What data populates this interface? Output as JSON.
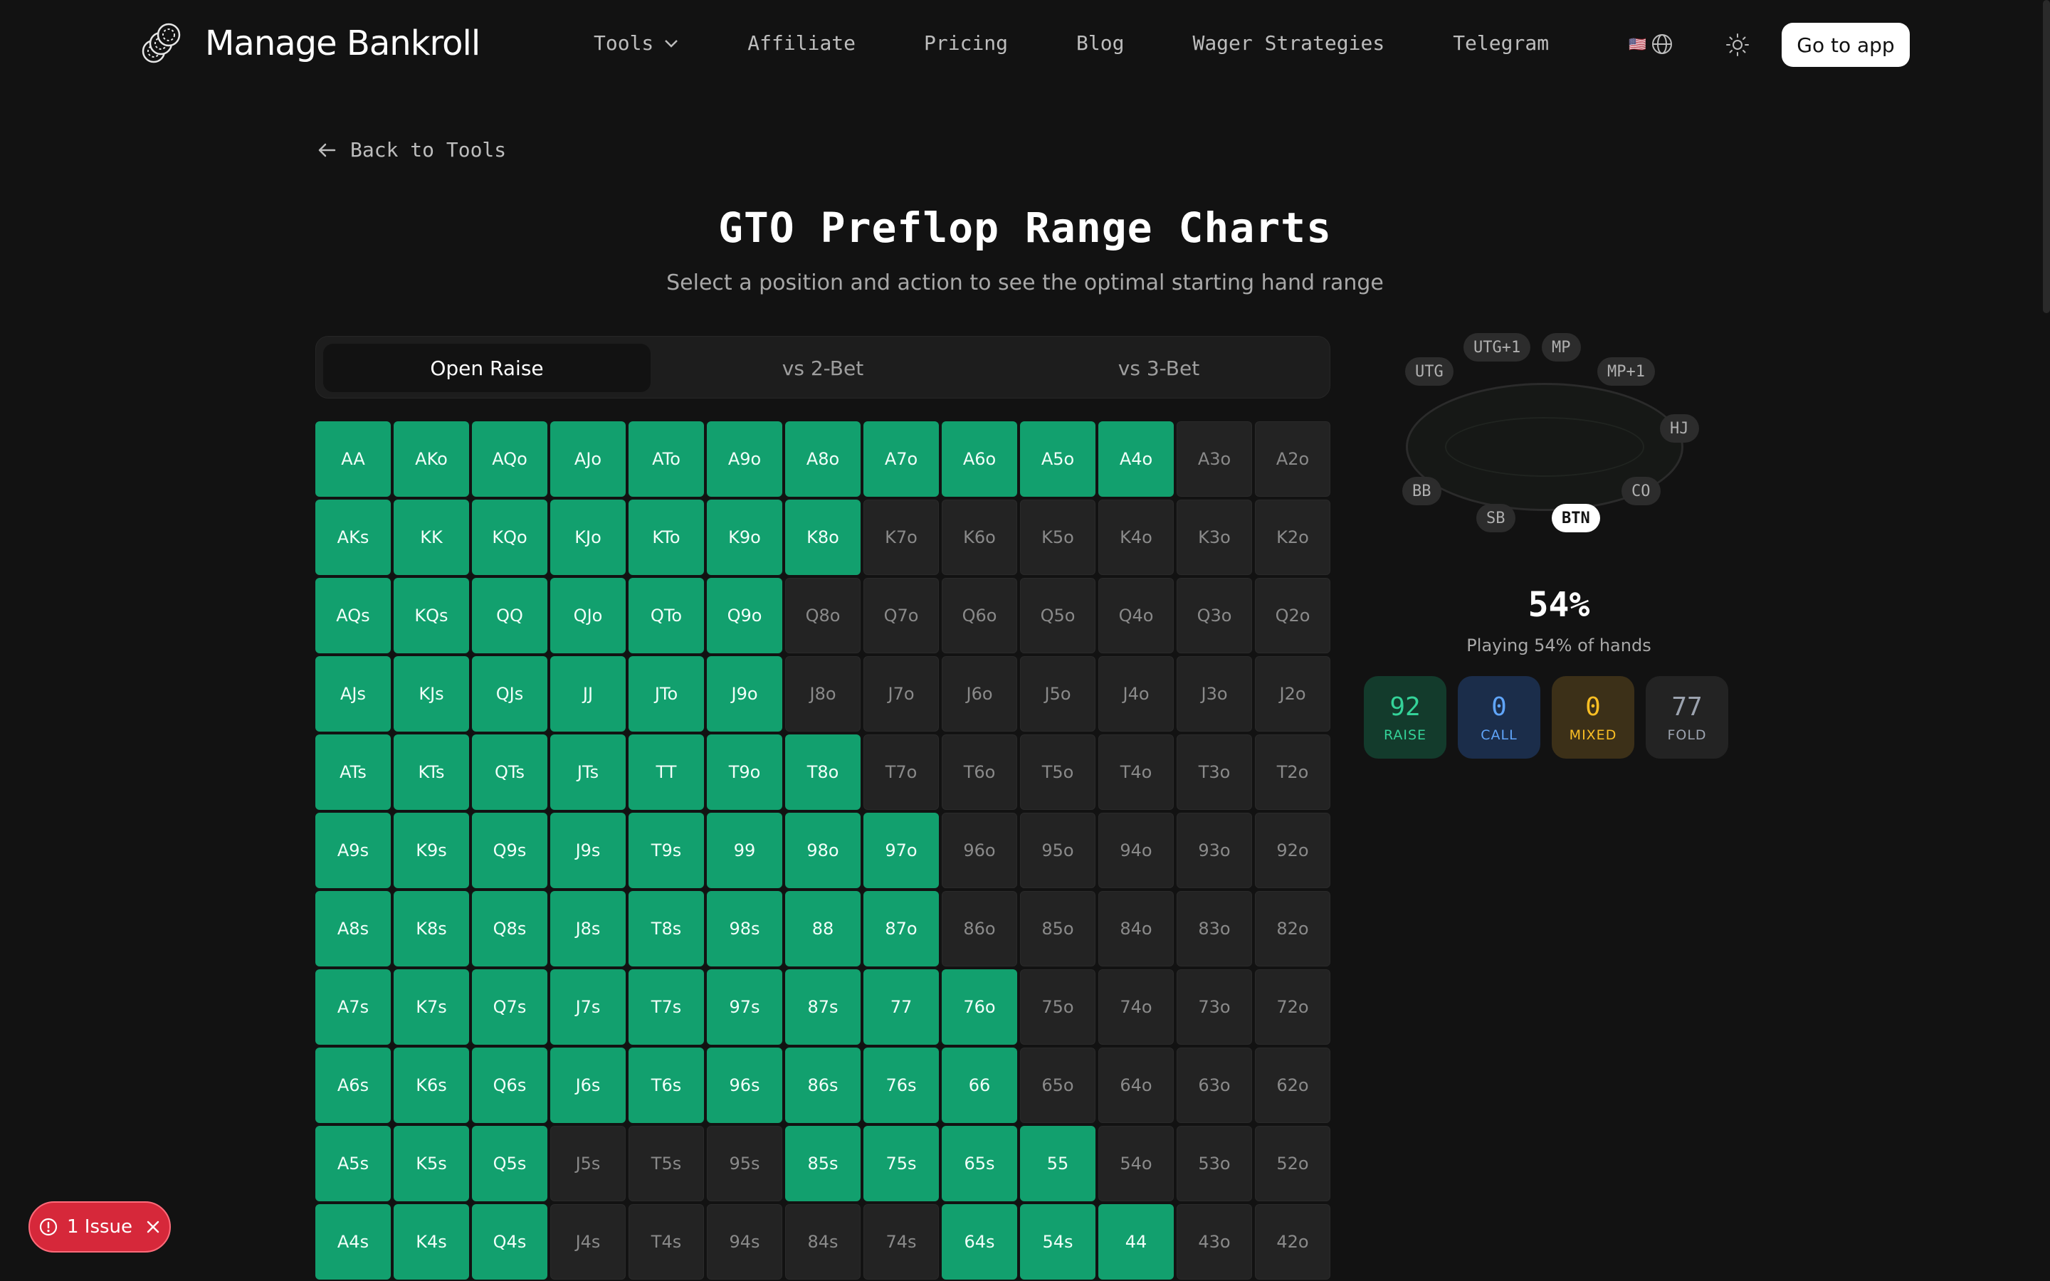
{
  "header": {
    "brand": "Manage Bankroll",
    "nav": [
      "Tools",
      "Affiliate",
      "Pricing",
      "Blog",
      "Wager Strategies",
      "Telegram"
    ],
    "flag": "🇺🇸",
    "cta": "Go to app"
  },
  "back_label": "Back to Tools",
  "title": "GTO Preflop Range Charts",
  "subtitle": "Select a position and action to see the optimal starting hand range",
  "tabs": [
    "Open Raise",
    "vs 2-Bet",
    "vs 3-Bet"
  ],
  "active_tab": "Open Raise",
  "grid": {
    "rows": [
      [
        "AA",
        "AKo",
        "AQo",
        "AJo",
        "ATo",
        "A9o",
        "A8o",
        "A7o",
        "A6o",
        "A5o",
        "A4o",
        "A3o",
        "A2o"
      ],
      [
        "AKs",
        "KK",
        "KQo",
        "KJo",
        "KTo",
        "K9o",
        "K8o",
        "K7o",
        "K6o",
        "K5o",
        "K4o",
        "K3o",
        "K2o"
      ],
      [
        "AQs",
        "KQs",
        "QQ",
        "QJo",
        "QTo",
        "Q9o",
        "Q8o",
        "Q7o",
        "Q6o",
        "Q5o",
        "Q4o",
        "Q3o",
        "Q2o"
      ],
      [
        "AJs",
        "KJs",
        "QJs",
        "JJ",
        "JTo",
        "J9o",
        "J8o",
        "J7o",
        "J6o",
        "J5o",
        "J4o",
        "J3o",
        "J2o"
      ],
      [
        "ATs",
        "KTs",
        "QTs",
        "JTs",
        "TT",
        "T9o",
        "T8o",
        "T7o",
        "T6o",
        "T5o",
        "T4o",
        "T3o",
        "T2o"
      ],
      [
        "A9s",
        "K9s",
        "Q9s",
        "J9s",
        "T9s",
        "99",
        "98o",
        "97o",
        "96o",
        "95o",
        "94o",
        "93o",
        "92o"
      ],
      [
        "A8s",
        "K8s",
        "Q8s",
        "J8s",
        "T8s",
        "98s",
        "88",
        "87o",
        "86o",
        "85o",
        "84o",
        "83o",
        "82o"
      ],
      [
        "A7s",
        "K7s",
        "Q7s",
        "J7s",
        "T7s",
        "97s",
        "87s",
        "77",
        "76o",
        "75o",
        "74o",
        "73o",
        "72o"
      ],
      [
        "A6s",
        "K6s",
        "Q6s",
        "J6s",
        "T6s",
        "96s",
        "86s",
        "76s",
        "66",
        "65o",
        "64o",
        "63o",
        "62o"
      ],
      [
        "A5s",
        "K5s",
        "Q5s",
        "J5s",
        "T5s",
        "95s",
        "85s",
        "75s",
        "65s",
        "55",
        "54o",
        "53o",
        "52o"
      ],
      [
        "A4s",
        "K4s",
        "Q4s",
        "J4s",
        "T4s",
        "94s",
        "84s",
        "74s",
        "64s",
        "54s",
        "44",
        "43o",
        "42o"
      ]
    ],
    "actions": [
      "RRRRRRRRRRRFF",
      "RRRRRRRFFFFFF",
      "RRRRRRFFFFFFF",
      "RRRRRRFFFFFFF",
      "RRRRRRRFFFFFF",
      "RRRRRRRRFFFFF",
      "RRRRRRRRFFFFF",
      "RRRRRRRRRFFFF",
      "RRRRRRRRRFFFF",
      "RRRFFFRRRRFFF",
      "RRRFFFFFRRRFF"
    ]
  },
  "seats": [
    "UTG",
    "UTG+1",
    "MP",
    "MP+1",
    "HJ",
    "CO",
    "BTN",
    "SB",
    "BB"
  ],
  "active_seat": "BTN",
  "percent": "54%",
  "percent_label": "Playing 54% of hands",
  "stats": [
    {
      "value": "92",
      "label": "RAISE",
      "color": "#34d399",
      "bg": "#133b2c"
    },
    {
      "value": "0",
      "label": "CALL",
      "color": "#60a5fa",
      "bg": "#1b2d4a"
    },
    {
      "value": "0",
      "label": "MIXED",
      "color": "#fbbf24",
      "bg": "#3c3018"
    },
    {
      "value": "77",
      "label": "FOLD",
      "color": "#9ca3af",
      "bg": "#232323"
    }
  ],
  "issue_label": "1 Issue"
}
